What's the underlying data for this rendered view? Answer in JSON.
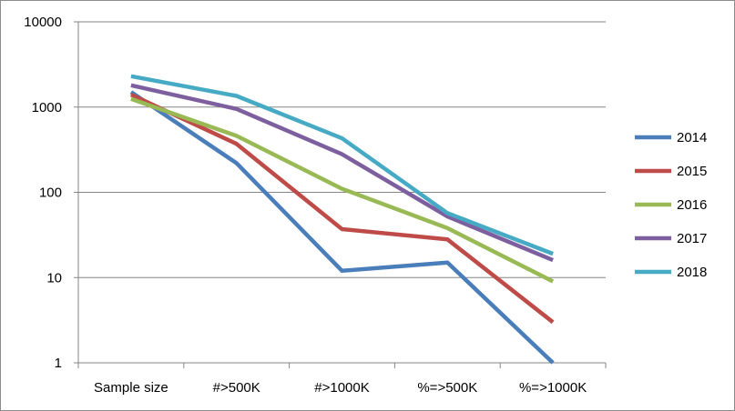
{
  "chart_data": {
    "type": "line",
    "title": "",
    "xlabel": "",
    "ylabel": "",
    "y_scale": "log",
    "ylim": [
      1,
      10000
    ],
    "y_ticks": [
      "1",
      "10",
      "100",
      "1000",
      "10000"
    ],
    "categories": [
      "Sample size",
      "#>500K",
      "#>1000K",
      "%=>500K",
      "%=>1000K"
    ],
    "grid": "horizontal major gridlines",
    "legend_position": "right",
    "series": [
      {
        "name": "2014",
        "color": "#4a7ebb",
        "values": [
          1500,
          220,
          12,
          15,
          1
        ]
      },
      {
        "name": "2015",
        "color": "#be4b48",
        "values": [
          1400,
          370,
          37,
          28,
          3
        ]
      },
      {
        "name": "2016",
        "color": "#98b954",
        "values": [
          1250,
          460,
          110,
          38,
          9
        ]
      },
      {
        "name": "2017",
        "color": "#7d5fa0",
        "values": [
          1800,
          950,
          280,
          52,
          16
        ]
      },
      {
        "name": "2018",
        "color": "#46aac5",
        "values": [
          2300,
          1350,
          430,
          57,
          19
        ]
      }
    ]
  }
}
